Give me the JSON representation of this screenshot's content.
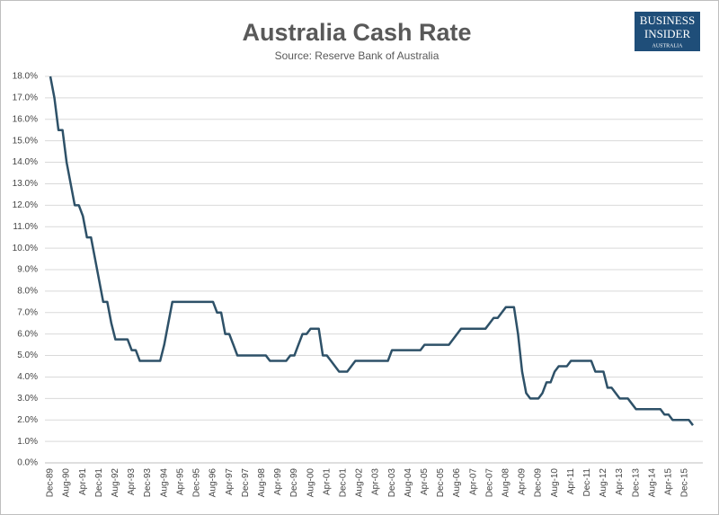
{
  "logo": {
    "line1": "BUSINESS",
    "line2": "INSIDER",
    "line3": "AUSTRALIA"
  },
  "chart_data": {
    "type": "line",
    "title": "Australia Cash Rate",
    "subtitle": "Source: Reserve Bank of Australia",
    "categories": [
      "Dec-89",
      null,
      null,
      null,
      "Aug-90",
      null,
      null,
      null,
      "Apr-91",
      null,
      null,
      null,
      "Dec-91",
      null,
      null,
      null,
      "Aug-92",
      null,
      null,
      null,
      "Apr-93",
      null,
      null,
      null,
      "Dec-93",
      null,
      null,
      null,
      "Aug-94",
      null,
      null,
      null,
      "Apr-95",
      null,
      null,
      null,
      "Dec-95",
      null,
      null,
      null,
      "Aug-96",
      null,
      null,
      null,
      "Apr-97",
      null,
      null,
      null,
      "Dec-97",
      null,
      null,
      null,
      "Aug-98",
      null,
      null,
      null,
      "Apr-99",
      null,
      null,
      null,
      "Dec-99",
      null,
      null,
      null,
      "Aug-00",
      null,
      null,
      null,
      "Apr-01",
      null,
      null,
      null,
      "Dec-01",
      null,
      null,
      null,
      "Aug-02",
      null,
      null,
      null,
      "Apr-03",
      null,
      null,
      null,
      "Dec-03",
      null,
      null,
      null,
      "Aug-04",
      null,
      null,
      null,
      "Apr-05",
      null,
      null,
      null,
      "Dec-05",
      null,
      null,
      null,
      "Aug-06",
      null,
      null,
      null,
      "Apr-07",
      null,
      null,
      null,
      "Dec-07",
      null,
      null,
      null,
      "Aug-08",
      null,
      null,
      null,
      "Apr-09",
      null,
      null,
      null,
      "Dec-09",
      null,
      null,
      null,
      "Aug-10",
      null,
      null,
      null,
      "Apr-11",
      null,
      null,
      null,
      "Dec-11",
      null,
      null,
      null,
      "Aug-12",
      null,
      null,
      null,
      "Apr-13",
      null,
      null,
      null,
      "Dec-13",
      null,
      null,
      null,
      "Aug-14",
      null,
      null,
      null,
      "Apr-15",
      null,
      null,
      null,
      "Dec-15",
      null,
      null
    ],
    "series": [
      {
        "color": "#2e5168",
        "values": [
          18,
          17,
          15.5,
          15.5,
          14,
          13,
          12,
          12,
          11.5,
          10.5,
          10.5,
          9.5,
          8.5,
          7.5,
          7.5,
          6.5,
          5.75,
          5.75,
          5.75,
          5.75,
          5.25,
          5.25,
          4.75,
          4.75,
          4.75,
          4.75,
          4.75,
          4.75,
          5.5,
          6.5,
          7.5,
          7.5,
          7.5,
          7.5,
          7.5,
          7.5,
          7.5,
          7.5,
          7.5,
          7.5,
          7.5,
          7,
          7,
          6,
          6,
          5.5,
          5,
          5,
          5,
          5,
          5,
          5,
          5,
          5,
          4.75,
          4.75,
          4.75,
          4.75,
          4.75,
          5,
          5,
          5.5,
          6,
          6,
          6.25,
          6.25,
          6.25,
          5,
          5,
          4.75,
          4.5,
          4.25,
          4.25,
          4.25,
          4.5,
          4.75,
          4.75,
          4.75,
          4.75,
          4.75,
          4.75,
          4.75,
          4.75,
          4.75,
          5.25,
          5.25,
          5.25,
          5.25,
          5.25,
          5.25,
          5.25,
          5.25,
          5.5,
          5.5,
          5.5,
          5.5,
          5.5,
          5.5,
          5.5,
          5.75,
          6,
          6.25,
          6.25,
          6.25,
          6.25,
          6.25,
          6.25,
          6.25,
          6.5,
          6.75,
          6.75,
          7,
          7.25,
          7.25,
          7.25,
          6,
          4.25,
          3.25,
          3,
          3,
          3,
          3.25,
          3.75,
          3.75,
          4.25,
          4.5,
          4.5,
          4.5,
          4.75,
          4.75,
          4.75,
          4.75,
          4.75,
          4.75,
          4.25,
          4.25,
          4.25,
          3.5,
          3.5,
          3.25,
          3,
          3,
          3,
          2.75,
          2.5,
          2.5,
          2.5,
          2.5,
          2.5,
          2.5,
          2.5,
          2.25,
          2.25,
          2,
          2,
          2,
          2,
          2,
          1.75
        ]
      }
    ],
    "ylim": [
      0,
      18
    ],
    "yticks": [
      {
        "value": 0,
        "label": "0.0%"
      },
      {
        "value": 1,
        "label": "1.0%"
      },
      {
        "value": 2,
        "label": "2.0%"
      },
      {
        "value": 3,
        "label": "3.0%"
      },
      {
        "value": 4,
        "label": "4.0%"
      },
      {
        "value": 5,
        "label": "5.0%"
      },
      {
        "value": 6,
        "label": "6.0%"
      },
      {
        "value": 7,
        "label": "7.0%"
      },
      {
        "value": 8,
        "label": "8.0%"
      },
      {
        "value": 9,
        "label": "9.0%"
      },
      {
        "value": 10,
        "label": "10.0%"
      },
      {
        "value": 11,
        "label": "11.0%"
      },
      {
        "value": 12,
        "label": "12.0%"
      },
      {
        "value": 13,
        "label": "13.0%"
      },
      {
        "value": 14,
        "label": "14.0%"
      },
      {
        "value": 15,
        "label": "15.0%"
      },
      {
        "value": 16,
        "label": "16.0%"
      },
      {
        "value": 17,
        "label": "17.0%"
      },
      {
        "value": 18,
        "label": "18.0%"
      }
    ],
    "grid": true
  }
}
